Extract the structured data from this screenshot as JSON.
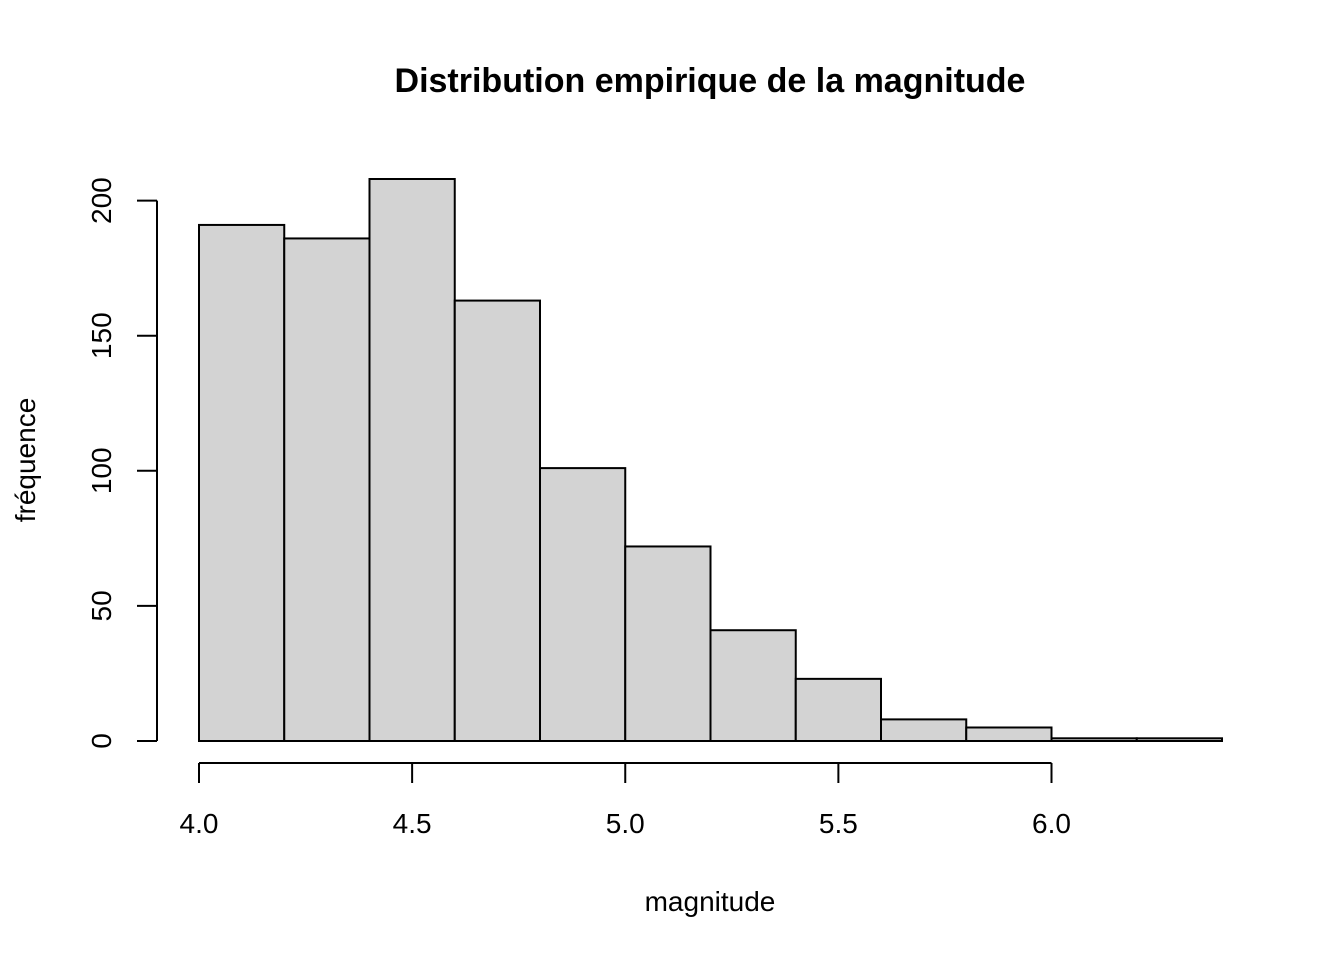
{
  "chart_data": {
    "type": "bar",
    "title": "Distribution empirique de la magnitude",
    "xlabel": "magnitude",
    "ylabel": "fréquence",
    "bin_edges": [
      4.0,
      4.2,
      4.4,
      4.6,
      4.8,
      5.0,
      5.2,
      5.4,
      5.6,
      5.8,
      6.0,
      6.2,
      6.4
    ],
    "values": [
      191,
      186,
      208,
      163,
      101,
      72,
      41,
      23,
      8,
      5,
      1,
      1
    ],
    "xlim": [
      4.0,
      6.4
    ],
    "ylim": [
      0,
      208
    ],
    "x_ticks": [
      4.0,
      4.5,
      5.0,
      5.5,
      6.0
    ],
    "x_tick_labels": [
      "4.0",
      "4.5",
      "5.0",
      "5.5",
      "6.0"
    ],
    "y_ticks": [
      0,
      50,
      100,
      150,
      200
    ],
    "y_tick_labels": [
      "0",
      "50",
      "100",
      "150",
      "200"
    ],
    "grid": false,
    "legend": "none",
    "bar_color": "#d3d3d3",
    "edge_color": "#000000"
  }
}
